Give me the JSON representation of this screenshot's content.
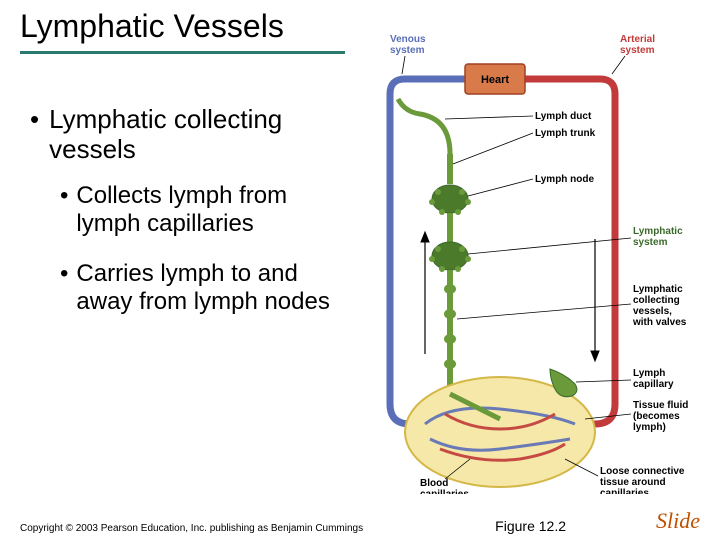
{
  "title": "Lymphatic Vessels",
  "title_underline_color": "#2a7a6f",
  "bullets": {
    "l1": "Lymphatic collecting vessels",
    "l2a": "Collects lymph from lymph capillaries",
    "l2b": "Carries lymph to and away from lymph nodes"
  },
  "diagram": {
    "heart_label": "Heart",
    "venous_label": "Venous\nsystem",
    "arterial_label": "Arterial\nsystem",
    "lymph_duct": "Lymph duct",
    "lymph_trunk": "Lymph trunk",
    "lymph_node": "Lymph node",
    "lymphatic_system": "Lymphatic\nsystem",
    "collecting_vessels": "Lymphatic\ncollecting\nvessels,\nwith valves",
    "lymph_capillary": "Lymph\ncapillary",
    "tissue_fluid": "Tissue fluid\n(becomes\nlymph)",
    "blood_capillaries": "Blood\ncapillaries",
    "loose_ct": "Loose connective\ntissue around\ncapillaries",
    "colors": {
      "heart_fill": "#d97a4a",
      "heart_border": "#a04020",
      "venous": "#5a6fb8",
      "arterial": "#c23a3a",
      "lymph_green": "#6a9a3a",
      "lymph_dark": "#3a6a2a",
      "node_green": "#4a7a2a",
      "tissue_bg": "#f5e8a8",
      "tissue_border": "#d4b848",
      "capillary_net": "#7a8a5a"
    }
  },
  "footer": {
    "copyright": "Copyright © 2003 Pearson Education, Inc. publishing as Benjamin Cummings",
    "figure": "Figure 12.2",
    "slide": "Slide"
  }
}
